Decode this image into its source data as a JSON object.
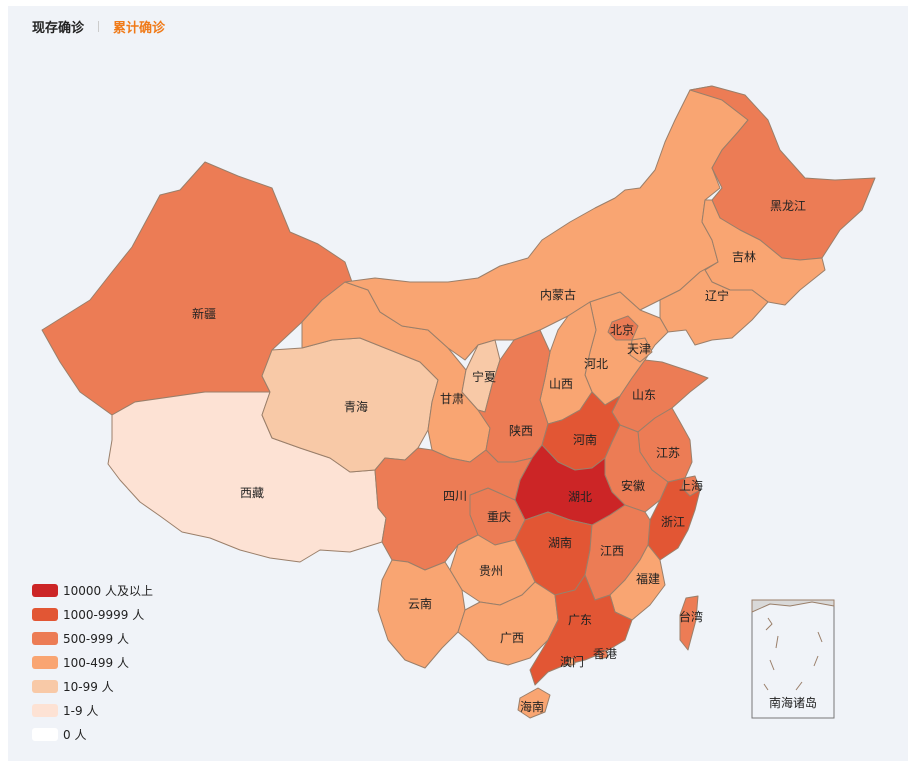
{
  "tabs": [
    {
      "label": "现存确诊",
      "active": false
    },
    {
      "label": "累计确诊",
      "active": true
    }
  ],
  "legend": [
    {
      "label": "10000 人及以上",
      "color": "#cc2526"
    },
    {
      "label": "1000-9999 人",
      "color": "#e25634"
    },
    {
      "label": "500-999 人",
      "color": "#ec7c55"
    },
    {
      "label": "100-499 人",
      "color": "#f9a572"
    },
    {
      "label": "10-99 人",
      "color": "#f8c9a7"
    },
    {
      "label": "1-9 人",
      "color": "#fde2d4"
    },
    {
      "label": "0 人",
      "color": "#ffffff"
    }
  ],
  "provinces": {
    "xinjiang": "新疆",
    "xizang": "西藏",
    "qinghai": "青海",
    "gansu": "甘肃",
    "neimenggu": "内蒙古",
    "heilongjiang": "黑龙江",
    "jilin": "吉林",
    "liaoning": "辽宁",
    "beijing": "北京",
    "tianjin": "天津",
    "hebei": "河北",
    "shanxi": "山西",
    "shandong": "山东",
    "ningxia": "宁夏",
    "shaanxi": "陕西",
    "henan": "河南",
    "jiangsu": "江苏",
    "shanghai": "上海",
    "anhui": "安徽",
    "hubei": "湖北",
    "sichuan": "四川",
    "chongqing": "重庆",
    "zhejiang": "浙江",
    "hunan": "湖南",
    "jiangxi": "江西",
    "guizhou": "贵州",
    "yunnan": "云南",
    "fujian": "福建",
    "guangxi": "广西",
    "guangdong": "广东",
    "taiwan": "台湾",
    "aomen": "澳门",
    "xianggang": "香港",
    "hainan": "海南"
  },
  "inset_label": "南海诸岛",
  "tiers": {
    "xinjiang": 2,
    "xizang": 5,
    "qinghai": 4,
    "gansu": 3,
    "neimenggu": 3,
    "heilongjiang": 2,
    "jilin": 3,
    "liaoning": 3,
    "beijing": 2,
    "tianjin": 3,
    "hebei": 3,
    "shanxi": 3,
    "shandong": 2,
    "ningxia": 4,
    "shaanxi": 2,
    "henan": 1,
    "jiangsu": 2,
    "shanghai": 2,
    "anhui": 2,
    "hubei": 0,
    "sichuan": 2,
    "chongqing": 2,
    "zhejiang": 1,
    "hunan": 1,
    "jiangxi": 2,
    "guizhou": 3,
    "yunnan": 3,
    "fujian": 3,
    "guangxi": 3,
    "guangdong": 1,
    "taiwan": 2,
    "aomen": 3,
    "xianggang": 2,
    "hainan": 3
  }
}
